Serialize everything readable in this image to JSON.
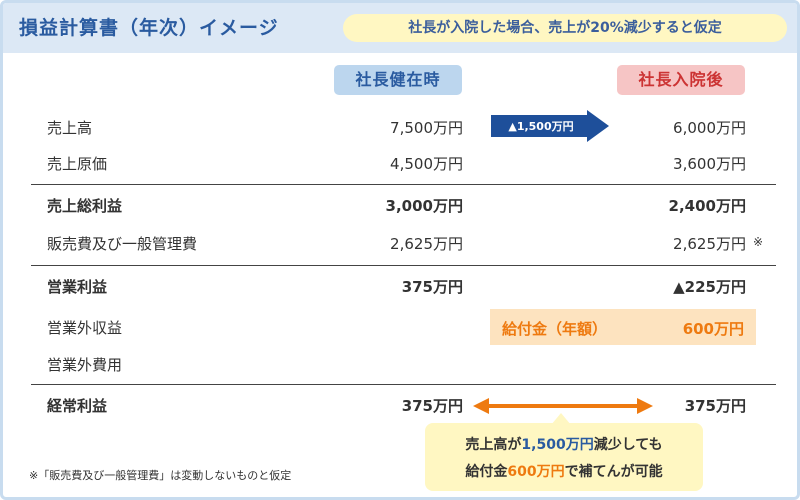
{
  "header": {
    "title": "損益計算書（年次）イメージ",
    "assumption": "社長が入院した場合、売上が20%減少すると仮定"
  },
  "columns": {
    "before": "社長健在時",
    "after": "社長入院後"
  },
  "rows": [
    {
      "label": "売上高",
      "before": "7,500万円",
      "after": "6,000万円"
    },
    {
      "label": "売上原価",
      "before": "4,500万円",
      "after": "3,600万円"
    },
    {
      "label": "売上総利益",
      "before": "3,000万円",
      "after": "2,400万円"
    },
    {
      "label": "販売費及び一般管理費",
      "before": "2,625万円",
      "after": "2,625万円",
      "note": "※"
    },
    {
      "label": "営業利益",
      "before": "375万円",
      "after": "▲225万円"
    },
    {
      "label": "営業外収益",
      "before": "",
      "after": ""
    },
    {
      "label": "営業外費用",
      "before": "",
      "after": ""
    },
    {
      "label": "経常利益",
      "before": "375万円",
      "after": "375万円"
    }
  ],
  "decrease_badge": "▲1,500万円",
  "grant": {
    "label": "給付金（年額）",
    "value": "600万円"
  },
  "callout": {
    "line1_a": "売上高が",
    "line1_b": "1,500万円",
    "line1_c": "減少しても",
    "line2_a": "給付金",
    "line2_b": "600万円",
    "line2_c": "で補てんが可能"
  },
  "footnote": "※「販売費及び一般管理費」は変動しないものと仮定",
  "colors": {
    "title_blue": "#2a5ba0",
    "header_bg": "#dce8f5",
    "before_bg": "#bcd6ee",
    "after_bg": "#f6c5c5",
    "after_text": "#cc3333",
    "badge_blue": "#1e4f9a",
    "grant_bg": "#fde3bf",
    "orange": "#ee7a10",
    "callout_bg": "#fff7c2"
  }
}
